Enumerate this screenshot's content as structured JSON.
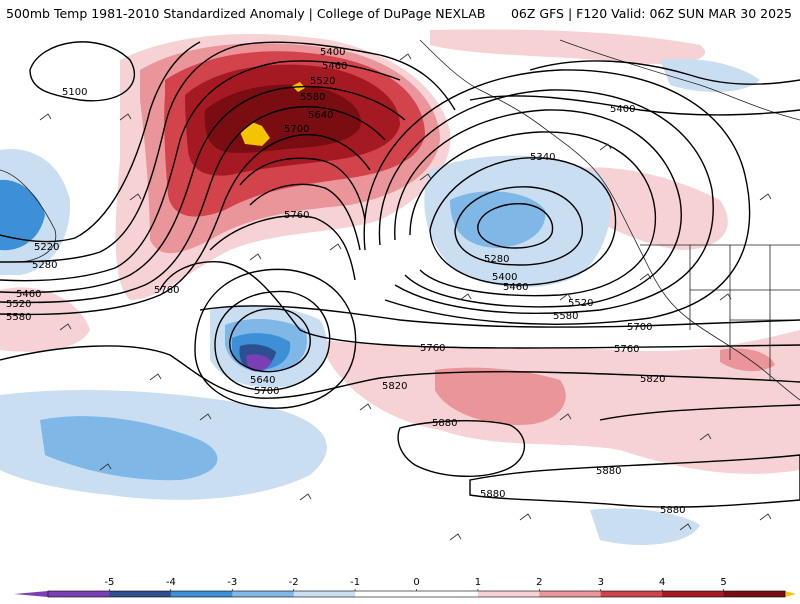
{
  "header": {
    "left_title": "500mb Temp 1981-2010 Standardized Anomaly | College of DuPage NEXLAB",
    "right_title": "06Z GFS | F120 Valid: 06Z SUN MAR 30 2025"
  },
  "colors": {
    "neg5": "#7a3fb5",
    "neg4": "#2b4f8f",
    "neg3": "#3d8fd6",
    "neg2": "#7fb7e6",
    "neg1": "#c9def1",
    "zero": "#ffffff",
    "pos1": "#f7d2d4",
    "pos2": "#e99599",
    "pos3": "#d2434b",
    "pos4": "#a51a22",
    "pos5": "#7a0d12",
    "extreme": "#f5c400"
  },
  "height_contour_labels": {
    "c5100": "5100",
    "c5220": "5220",
    "c5280a": "5280",
    "c5460a": "5460",
    "c5520a": "5520",
    "c5580a": "5580",
    "c5400a": "5400",
    "c5460b": "5460",
    "c5520b": "5520",
    "c5580b": "5580",
    "c5640a": "5640",
    "c5700a": "5700",
    "c5760a": "5760",
    "c5760b": "5760",
    "c5340": "5340",
    "c5400b": "5400",
    "c5280b": "5280",
    "c5400c": "5400",
    "c5460c": "5460",
    "c5520c": "5520",
    "c5580c": "5580",
    "c5700b": "5700",
    "c5760c": "5760",
    "c5760d": "5760",
    "c5820a": "5820",
    "c5820b": "5820",
    "c5640b": "5640",
    "c5700c": "5700",
    "c5880a": "5880",
    "c5880b": "5880",
    "c5880c": "5880",
    "c5880d": "5880"
  },
  "colorbar": {
    "ticks": [
      "-5",
      "-4",
      "-3",
      "-2",
      "-1",
      "0",
      "1",
      "2",
      "3",
      "4",
      "5"
    ]
  }
}
